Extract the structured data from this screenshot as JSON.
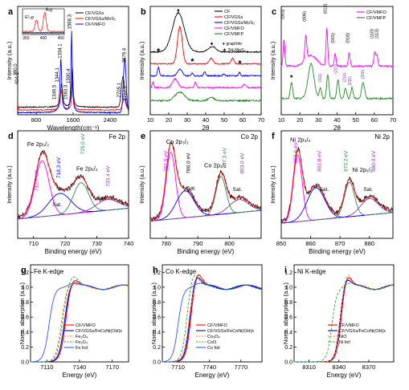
{
  "figure": {
    "panels": [
      {
        "id": "a",
        "letter": "a",
        "xlabel": "Wavelength(cm⁻¹)",
        "ylabel": "Intensity (a.u.)",
        "xticks": [
          "800",
          "1600",
          "2400"
        ],
        "legend": [
          "CF/VGSs",
          "CF/VGSs/MoS₂",
          "CF/VMFO"
        ],
        "annotations": [
          "380.0",
          "404.1",
          "1349.5",
          "1344.1",
          "1334.1",
          "1583.3",
          "1590.4",
          "1568.3",
          "2679.4",
          "2705.1",
          "2717.9",
          "E¹₂g",
          "A₁g"
        ],
        "inset_xticks": [
          "350",
          "400",
          "450"
        ],
        "colors": [
          "#000000",
          "#ff0000",
          "#0000ff"
        ]
      },
      {
        "id": "b",
        "letter": "b",
        "xlabel": "2θ",
        "ylabel": "Intensity (a.u.)",
        "xticks": [
          "10",
          "20",
          "30",
          "40",
          "50",
          "60",
          "70"
        ],
        "legend": [
          "CF",
          "CF/VGSs",
          "CF/VGSs/MoS₂",
          "CF/VMFO",
          "CF/VMFP"
        ],
        "annotations": [
          "♦ graphite",
          "★ 2H-MoS₂"
        ],
        "colors": [
          "#000000",
          "#ff0000",
          "#0000ff",
          "#ff00ff",
          "#228b22"
        ]
      },
      {
        "id": "c",
        "letter": "c",
        "xlabel": "2θ",
        "ylabel": "Intensity (a.u.)",
        "xticks": [
          "10",
          "20",
          "30",
          "40",
          "50",
          "60",
          "70"
        ],
        "legend": [
          "CF/VMFO",
          "CF/VMFP"
        ],
        "annotations": [
          "(003)",
          "(006)",
          "(012)",
          "(015)",
          "(018)",
          "(110)",
          "(113)",
          "(111)",
          "(201)",
          "(210)",
          "(211)",
          "(300)",
          "(002)"
        ],
        "colors": [
          "#ff00ff",
          "#228b22"
        ]
      },
      {
        "id": "d",
        "letter": "d",
        "xlabel": "Binding energy (eV)",
        "ylabel": "Intensity (a.u.)",
        "xticks": [
          "710",
          "720",
          "730",
          "740"
        ],
        "title": "Fe 2p",
        "annotations": [
          "Fe 2p₃/₂",
          "712.7 eV",
          "718.3 eV",
          "Sat.",
          "Fe 2p₁/₂",
          "725.0 eV",
          "Sat.",
          "733.4 eV"
        ]
      },
      {
        "id": "e",
        "letter": "e",
        "xlabel": "Binding energy (eV)",
        "ylabel": "Intensity (a.u.)",
        "xticks": [
          "780",
          "790",
          "800"
        ],
        "title": "Co 2p",
        "annotations": [
          "Co 2p₃/₂",
          "781.5 eV",
          "786.0 eV",
          "Sat.",
          "Co 2p₁/₂",
          "797.3 eV",
          "Sat.",
          "803.0 eV"
        ]
      },
      {
        "id": "f",
        "letter": "f",
        "xlabel": "Binding energy (eV)",
        "ylabel": "Intensity (a.u.)",
        "xticks": [
          "850",
          "860",
          "870",
          "880"
        ],
        "title": "Ni 2p",
        "annotations": [
          "Ni 2p₃/₂",
          "855.6 eV",
          "861.8 eV",
          "Sat.",
          "Ni 2p₁/₂",
          "873.2 eV",
          "Sat.",
          "880.0 eV"
        ]
      },
      {
        "id": "g",
        "letter": "g",
        "xlabel": "Energy (eV)",
        "ylabel": "Norm. absorption (a.u.)",
        "xticks": [
          "7110",
          "7140",
          "7170"
        ],
        "yticks": [
          "0.0",
          "0.2",
          "0.4",
          "0.6",
          "0.8",
          "1.0",
          "1.2"
        ],
        "title": "Fe K-edge",
        "legend": [
          "CF/VMFO",
          "CF/VGSs/FeCoNi(OH)x",
          "Fe₃O₄",
          "Fe₂O₃",
          "Fe foil"
        ],
        "colors": [
          "#ff0000",
          "#0000ff",
          "#ff8c00",
          "#22aa22",
          "#3355ff"
        ]
      },
      {
        "id": "h",
        "letter": "h",
        "xlabel": "Energy (eV)",
        "ylabel": "Norm. absorption (a.u.)",
        "xticks": [
          "7710",
          "7740",
          "7770"
        ],
        "yticks": [
          "0.0",
          "0.2",
          "0.4",
          "0.6",
          "0.8",
          "1.0",
          "1.2"
        ],
        "title": "Co K-edge",
        "legend": [
          "CF/VMFO",
          "CF/VGSs/FeCoNi(OH)x",
          "Co₃O₄",
          "CoO",
          "Co foil"
        ],
        "colors": [
          "#ff0000",
          "#0000ff",
          "#ff8c00",
          "#22aa22",
          "#3355ff"
        ]
      },
      {
        "id": "i",
        "letter": "i",
        "xlabel": "Energy (eV)",
        "ylabel": "Norm. absorption (a.u.)",
        "xticks": [
          "8310",
          "8340",
          "8370"
        ],
        "yticks": [
          "0.0",
          "0.2",
          "0.4",
          "0.6",
          "0.8",
          "1.0",
          "1.2"
        ],
        "title": "Ni K-edge",
        "legend": [
          "CF/VMFO",
          "CF/VGSs/FeCoNi(OH)x",
          "NiO",
          "Ni foil"
        ],
        "colors": [
          "#ff0000",
          "#0000ff",
          "#ff8c00",
          "#22aa22"
        ]
      }
    ]
  },
  "chart_data": [
    {
      "type": "line",
      "id": "a",
      "xlim": [
        400,
        2800
      ],
      "series": [
        {
          "name": "CF/VGSs",
          "x": [
            1349.5,
            1583.3,
            2679.4
          ],
          "y": [
            0.35,
            0.55,
            0.45
          ]
        },
        {
          "name": "CF/VGSs/MoS₂",
          "x": [
            380.0,
            404.1,
            1344.1,
            1590.4,
            2705.1
          ],
          "y": [
            0.12,
            0.16,
            0.3,
            0.45,
            0.2
          ]
        },
        {
          "name": "CF/VMFO",
          "x": [
            1334.1,
            1568.3,
            2717.9
          ],
          "y": [
            0.7,
            1.0,
            0.85
          ]
        }
      ]
    },
    {
      "type": "line",
      "id": "b",
      "xlim": [
        10,
        70
      ],
      "series": [
        {
          "name": "CF",
          "peaks_x": [
            25.0,
            43.5
          ]
        },
        {
          "name": "CF/VGSs",
          "peaks_x": [
            26.0,
            43.0
          ]
        },
        {
          "name": "CF/VGSs/MoS₂",
          "peaks_x": [
            14.4,
            32.7,
            39.5,
            49.8,
            58.3
          ]
        },
        {
          "name": "CF/VMFO",
          "peaks_x": [
            11.5,
            23.0,
            34.5,
            61.0
          ]
        },
        {
          "name": "CF/VMFP",
          "peaks_x": [
            26.0,
            43.0
          ]
        }
      ]
    },
    {
      "type": "line",
      "id": "c",
      "xlim": [
        10,
        70
      ],
      "series": [
        {
          "name": "CF/VMFO",
          "peaks_x": [
            11.5,
            23.2,
            34.5,
            39.0,
            46.5,
            60.2,
            61.4
          ]
        },
        {
          "name": "CF/VMFP",
          "peaks_x": [
            15.5,
            26.0,
            31.0,
            35.0,
            40.5,
            44.5,
            48.0,
            54.0
          ]
        }
      ]
    },
    {
      "type": "line",
      "id": "d",
      "xlim": [
        705,
        740
      ],
      "peaks_ev": [
        712.7,
        718.3,
        725.0,
        733.4
      ]
    },
    {
      "type": "line",
      "id": "e",
      "xlim": [
        775,
        810
      ],
      "peaks_ev": [
        781.5,
        786.0,
        797.3,
        803.0
      ]
    },
    {
      "type": "line",
      "id": "f",
      "xlim": [
        850,
        888
      ],
      "peaks_ev": [
        855.6,
        861.8,
        873.2,
        880.0
      ]
    },
    {
      "type": "line",
      "id": "g",
      "xlim": [
        7095,
        7185
      ],
      "ylim": [
        0,
        1.3
      ],
      "series": [
        {
          "name": "CF/VMFO",
          "edge": 7127,
          "peak": 7134,
          "height": 1.12
        },
        {
          "name": "CF/VGSs/FeCoNi(OH)x",
          "edge": 7126,
          "peak": 7133,
          "height": 1.08
        },
        {
          "name": "Fe₃O₄",
          "edge": 7123,
          "peak": 7131,
          "height": 1.05
        },
        {
          "name": "Fe₂O₃",
          "edge": 7124,
          "peak": 7134,
          "height": 1.15
        },
        {
          "name": "Fe foil",
          "edge": 7112,
          "peak": 7134,
          "height": 1.05
        }
      ]
    },
    {
      "type": "line",
      "id": "h",
      "xlim": [
        7695,
        7790
      ],
      "ylim": [
        0,
        1.3
      ],
      "series": [
        {
          "name": "CF/VMFO",
          "edge": 7722,
          "peak": 7728,
          "height": 1.22
        },
        {
          "name": "CF/VGSs/FeCoNi(OH)x",
          "edge": 7721,
          "peak": 7727,
          "height": 1.18
        },
        {
          "name": "Co₃O₄",
          "edge": 7720,
          "peak": 7730,
          "height": 1.15
        },
        {
          "name": "CoO",
          "edge": 7718,
          "peak": 7725,
          "height": 1.2
        },
        {
          "name": "Co foil",
          "edge": 7710,
          "peak": 7730,
          "height": 1.05
        }
      ]
    },
    {
      "type": "line",
      "id": "i",
      "xlim": [
        8295,
        8395
      ],
      "ylim": [
        0,
        1.3
      ],
      "series": [
        {
          "name": "CF/VMFO",
          "edge": 8342,
          "peak": 8348,
          "height": 1.18
        },
        {
          "name": "CF/VGSs/FeCoNi(OH)x",
          "edge": 8341,
          "peak": 8347,
          "height": 1.14
        },
        {
          "name": "NiO",
          "edge": 8341,
          "peak": 8348,
          "height": 1.2
        },
        {
          "name": "Ni foil",
          "edge": 8333,
          "peak": 8350,
          "height": 1.05
        }
      ]
    }
  ]
}
